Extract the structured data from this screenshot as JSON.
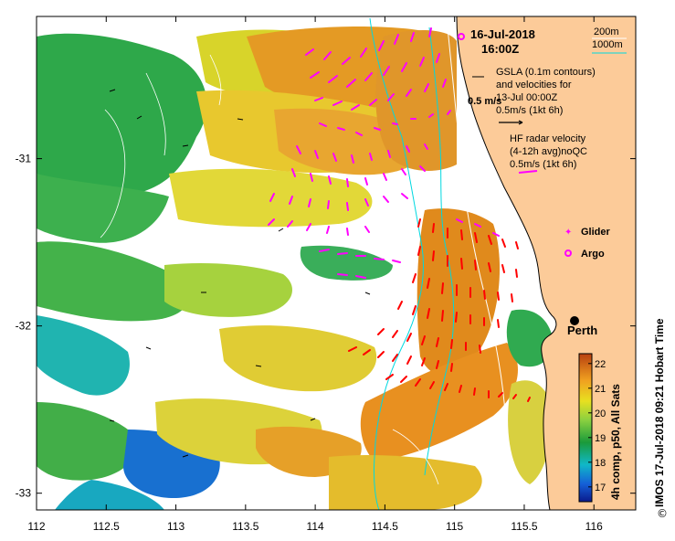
{
  "colors": {
    "land": "#fccb99",
    "coast": "#000000",
    "contour_200": "#ffffff",
    "contour_1000": "#00d8e0",
    "radar_vectors": "#ff00ff",
    "argo": "#ff00ff",
    "glider": "#ff00ff",
    "gsla_vectors": "#000000",
    "current_vectors": "#ff0000",
    "city_marker": "#000000"
  },
  "header": {
    "date": "16-Jul-2018",
    "time": "16:00Z"
  },
  "contour_legend": {
    "label_200": "200m",
    "label_1000": "1000m"
  },
  "gsla_legend": {
    "line1": "GSLA (0.1m contours)",
    "line2": "and velocities for",
    "line3": "13-Jul 00:00Z",
    "scale": "0.5m/s (1kt 6h)",
    "overlay_scale": "0.5 m/s"
  },
  "radar_legend": {
    "line1": "HF radar velocity",
    "line2": "(4-12h avg)noQC",
    "scale": "0.5m/s (1kt 6h)"
  },
  "markers": {
    "glider": "Glider",
    "argo": "Argo",
    "city": "Perth"
  },
  "colorbar": {
    "label": "4h comp, p50, All Sats",
    "ticks": [
      "17",
      "18",
      "19",
      "20",
      "21",
      "22"
    ]
  },
  "credit": "IMOS 17-Jul-2018 09:21 Hobart Time",
  "copyright": "©",
  "chart_data": {
    "type": "heatmap",
    "title": "16-Jul-2018 16:00Z",
    "xlabel": "",
    "ylabel": "",
    "xlim": [
      112,
      116.3
    ],
    "ylim": [
      -33.1,
      -30.15
    ],
    "x_ticks": [
      "112",
      "112.5",
      "113",
      "113.5",
      "114",
      "114.5",
      "115",
      "115.5",
      "116"
    ],
    "y_ticks": [
      "-31",
      "-32",
      "-33"
    ],
    "x_tick_values": [
      112,
      112.5,
      113,
      113.5,
      114,
      114.5,
      115,
      115.5,
      116
    ],
    "y_tick_values": [
      -31,
      -32,
      -33
    ],
    "zlim": [
      16.4,
      22.4
    ],
    "z_label": "4h comp, p50, All Sats",
    "city": {
      "name": "Perth",
      "lon": 115.86,
      "lat": -31.95
    }
  }
}
